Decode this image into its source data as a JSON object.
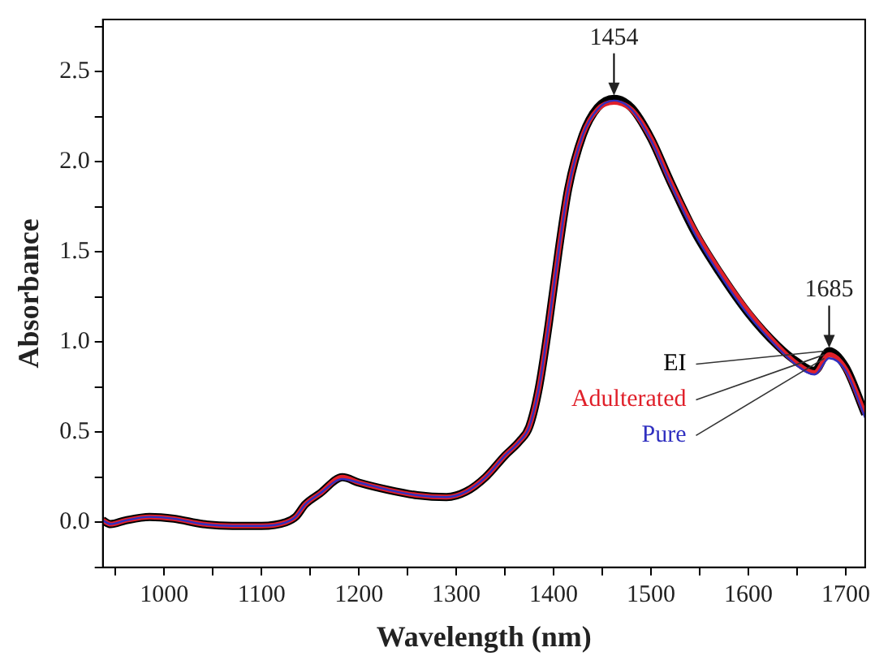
{
  "chart_data": {
    "type": "line",
    "xlabel": "Wavelength (nm)",
    "ylabel": "Absorbance",
    "x": [
      937,
      945,
      960,
      985,
      1010,
      1040,
      1070,
      1100,
      1125,
      1135,
      1145,
      1160,
      1183,
      1200,
      1230,
      1260,
      1290,
      1310,
      1330,
      1350,
      1365,
      1375,
      1385,
      1395,
      1405,
      1415,
      1430,
      1445,
      1462,
      1480,
      1500,
      1520,
      1545,
      1570,
      1600,
      1630,
      1650,
      1668,
      1683,
      1700,
      1720
    ],
    "series": [
      {
        "name": "EI",
        "color": "#000000",
        "values": [
          0.01,
          -0.01,
          0.01,
          0.03,
          0.02,
          -0.01,
          -0.02,
          -0.02,
          0.0,
          0.03,
          0.1,
          0.16,
          0.25,
          0.22,
          0.18,
          0.15,
          0.14,
          0.17,
          0.25,
          0.37,
          0.45,
          0.53,
          0.75,
          1.1,
          1.5,
          1.85,
          2.15,
          2.3,
          2.35,
          2.3,
          2.13,
          1.89,
          1.61,
          1.39,
          1.16,
          0.98,
          0.89,
          0.84,
          0.95,
          0.86,
          0.6
        ]
      },
      {
        "name": "Adulterated",
        "color": "#e0202a",
        "values": [
          0.01,
          -0.01,
          0.01,
          0.03,
          0.02,
          -0.01,
          -0.02,
          -0.02,
          0.0,
          0.03,
          0.1,
          0.16,
          0.25,
          0.22,
          0.18,
          0.15,
          0.14,
          0.17,
          0.25,
          0.37,
          0.45,
          0.53,
          0.75,
          1.1,
          1.5,
          1.85,
          2.15,
          2.29,
          2.33,
          2.29,
          2.13,
          1.89,
          1.62,
          1.4,
          1.17,
          0.98,
          0.88,
          0.83,
          0.93,
          0.85,
          0.6
        ]
      },
      {
        "name": "Pure",
        "color": "#3030c0",
        "values": [
          0.01,
          -0.01,
          0.01,
          0.03,
          0.02,
          -0.01,
          -0.02,
          -0.02,
          0.0,
          0.03,
          0.1,
          0.16,
          0.24,
          0.22,
          0.18,
          0.15,
          0.14,
          0.17,
          0.25,
          0.37,
          0.45,
          0.53,
          0.75,
          1.1,
          1.5,
          1.85,
          2.15,
          2.29,
          2.34,
          2.29,
          2.12,
          1.88,
          1.6,
          1.38,
          1.15,
          0.97,
          0.87,
          0.82,
          0.91,
          0.84,
          0.58
        ]
      }
    ],
    "xlim": [
      937,
      1720
    ],
    "xticks": [
      {
        "value": 950,
        "label": null
      },
      1000,
      {
        "value": 1050,
        "label": null
      },
      1100,
      {
        "value": 1150,
        "label": null
      },
      1200,
      {
        "value": 1250,
        "label": null
      },
      1300,
      {
        "value": 1350,
        "label": null
      },
      1400,
      {
        "value": 1450,
        "label": null
      },
      1500,
      {
        "value": 1550,
        "label": null
      },
      1600,
      {
        "value": 1650,
        "label": null
      },
      1700
    ],
    "ylim": [
      -0.25,
      2.79
    ],
    "yticks": [
      {
        "value": -0.25,
        "label": null
      },
      {
        "value": 0,
        "label": "0.0"
      },
      {
        "value": 0.25,
        "label": null
      },
      {
        "value": 0.5,
        "label": "0.5"
      },
      {
        "value": 0.75,
        "label": null
      },
      {
        "value": 1,
        "label": "1.0"
      },
      {
        "value": 1.25,
        "label": null
      },
      {
        "value": 1.5,
        "label": "1.5"
      },
      {
        "value": 1.75,
        "label": null
      },
      {
        "value": 2,
        "label": "2.0"
      },
      {
        "value": 2.25,
        "label": null
      },
      {
        "value": 2.5,
        "label": "2.5"
      },
      {
        "value": 2.75,
        "label": null
      }
    ],
    "annotations": [
      {
        "text": "1454",
        "x": 1462,
        "y": 2.35
      },
      {
        "text": "1685",
        "x": 1683,
        "y": 0.95
      }
    ],
    "grid": false,
    "legend": false,
    "marker": "none",
    "line_style": "solid"
  }
}
